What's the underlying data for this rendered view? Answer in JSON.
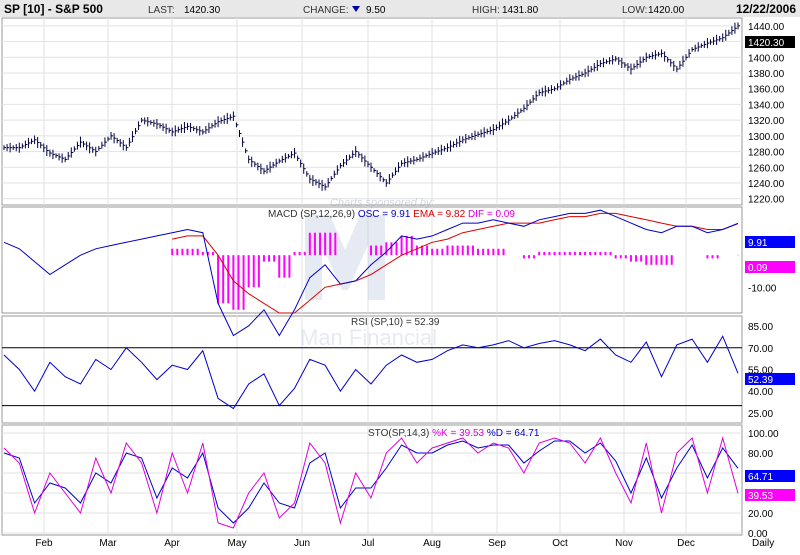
{
  "header": {
    "symbol": "SP [10] - S&P 500",
    "last_label": "LAST:",
    "last_value": "1420.30",
    "change_label": "CHANGE:",
    "change_value": "9.50",
    "high_label": "HIGH:",
    "high_value": "1431.80",
    "low_label": "LOW:",
    "low_value": "1420.00",
    "date": "12/22/2006"
  },
  "watermark": {
    "sponsor": "Charts sponsored by:",
    "brand": "Man Financial"
  },
  "colors": {
    "background": "#ffffff",
    "header_bg": "#e8e8e8",
    "grid": "#e2e2e2",
    "price_bar": "#000040",
    "osc_line": "#0000cc",
    "ema_line": "#dd0000",
    "histogram": "#ff00ff",
    "rsi_line": "#0000cc",
    "pct_k_line": "#dd00dd",
    "pct_d_line": "#0000cc",
    "label_bg_blue": "#0000ff"
  },
  "chart_data": [
    {
      "type": "bar",
      "panel": "price",
      "price_tag": "1420.30",
      "y_ticks": [
        "1440.00",
        "1420.00",
        "1400.00",
        "1380.00",
        "1360.00",
        "1340.00",
        "1320.00",
        "1300.00",
        "1280.00",
        "1260.00",
        "1240.00",
        "1220.00"
      ],
      "ylim": [
        1212,
        1450
      ],
      "weekly_close": [
        1285,
        1295,
        1278,
        1270,
        1292,
        1280,
        1300,
        1285,
        1320,
        1315,
        1305,
        1312,
        1305,
        1318,
        1325,
        1270,
        1255,
        1268,
        1278,
        1245,
        1235,
        1262,
        1280,
        1260,
        1240,
        1265,
        1270,
        1278,
        1285,
        1295,
        1302,
        1308,
        1320,
        1335,
        1355,
        1360,
        1372,
        1380,
        1392,
        1398,
        1385,
        1400,
        1405,
        1385,
        1410,
        1418,
        1425,
        1440,
        1420.3
      ],
      "xlim": [
        0,
        48
      ]
    },
    {
      "type": "line",
      "panel": "macd",
      "title": "MACD (SP,12,26,9)",
      "osc_label": "OSC = 9.91",
      "ema_label": "EMA = 9.82",
      "dif_label": "DIF = 0.09",
      "osc_tag": "9.91",
      "dif_tag": "0.09",
      "y_ticks": [
        "-10.00"
      ],
      "ylim": [
        -18,
        15
      ],
      "osc": [
        4,
        2,
        -2,
        -6,
        -3,
        0,
        2,
        3,
        4,
        5,
        6,
        7,
        8,
        7,
        -15,
        -25,
        -22,
        -17,
        -25,
        -17,
        -7,
        -3,
        -9,
        -8,
        -3,
        1,
        6,
        5,
        6,
        8,
        10,
        10,
        11,
        10,
        9,
        11,
        12,
        13,
        13,
        14,
        12,
        10,
        8,
        7,
        9,
        9,
        7,
        8,
        9.91
      ],
      "ema": [
        null,
        null,
        null,
        null,
        null,
        null,
        null,
        null,
        null,
        null,
        null,
        5,
        6,
        6,
        0,
        -8,
        -12,
        -15,
        -18,
        -18,
        -14,
        -10,
        -9,
        -8,
        -6,
        -3,
        0,
        2,
        4,
        5,
        7,
        8,
        9,
        10,
        10,
        10,
        11,
        12,
        12,
        13,
        13,
        12,
        11,
        10,
        9,
        9,
        8,
        8,
        9.82
      ],
      "dif": [
        null,
        null,
        null,
        null,
        null,
        null,
        null,
        null,
        null,
        null,
        null,
        2,
        2,
        1,
        -15,
        -17,
        -10,
        -2,
        -7,
        1,
        7,
        7,
        0,
        0,
        3,
        4,
        6,
        3,
        2,
        3,
        3,
        2,
        2,
        0,
        -1,
        1,
        1,
        1,
        1,
        1,
        -1,
        -2,
        -3,
        -3,
        0,
        0,
        -1,
        0,
        0.09
      ]
    },
    {
      "type": "line",
      "panel": "rsi",
      "title": "RSI (SP,10) = 52.39",
      "tag": "52.39",
      "y_ticks": [
        "85.00",
        "70.00",
        "55.00",
        "40.00",
        "25.00"
      ],
      "levels": [
        70,
        30
      ],
      "ylim": [
        18,
        92
      ],
      "values": [
        65,
        55,
        40,
        60,
        50,
        45,
        62,
        55,
        70,
        60,
        48,
        58,
        55,
        68,
        35,
        28,
        45,
        52,
        30,
        42,
        62,
        58,
        40,
        55,
        45,
        58,
        65,
        60,
        62,
        68,
        72,
        70,
        72,
        75,
        70,
        73,
        75,
        72,
        68,
        76,
        65,
        60,
        74,
        50,
        72,
        76,
        60,
        78,
        52.39
      ]
    },
    {
      "type": "line",
      "panel": "stochastic",
      "title": "STO(SP,14,3)",
      "k_label": "%K = 39.53",
      "d_label": "%D = 64.71",
      "k_tag": "39.53",
      "d_tag": "64.71",
      "y_ticks": [
        "100.00",
        "80.00",
        "60.00",
        "40.00",
        "20.00",
        "0.00"
      ],
      "ylim": [
        -2,
        108
      ],
      "pct_k": [
        85,
        70,
        20,
        60,
        40,
        20,
        75,
        40,
        90,
        70,
        20,
        80,
        40,
        90,
        10,
        5,
        40,
        60,
        15,
        30,
        90,
        70,
        10,
        60,
        35,
        80,
        95,
        70,
        85,
        90,
        95,
        80,
        90,
        85,
        60,
        90,
        95,
        90,
        70,
        95,
        60,
        30,
        90,
        20,
        80,
        95,
        40,
        95,
        39.53
      ],
      "pct_d": [
        80,
        75,
        30,
        50,
        45,
        30,
        60,
        50,
        80,
        75,
        35,
        65,
        55,
        80,
        25,
        10,
        25,
        50,
        30,
        25,
        70,
        80,
        25,
        45,
        45,
        65,
        88,
        80,
        80,
        88,
        92,
        85,
        88,
        88,
        70,
        82,
        92,
        92,
        80,
        90,
        72,
        40,
        75,
        35,
        65,
        88,
        55,
        85,
        64.71
      ]
    }
  ],
  "x_axis": {
    "months": [
      "Feb",
      "Mar",
      "Apr",
      "May",
      "Jun",
      "Jul",
      "Aug",
      "Sep",
      "Oct",
      "Nov",
      "Dec"
    ],
    "period_label": "Daily"
  }
}
